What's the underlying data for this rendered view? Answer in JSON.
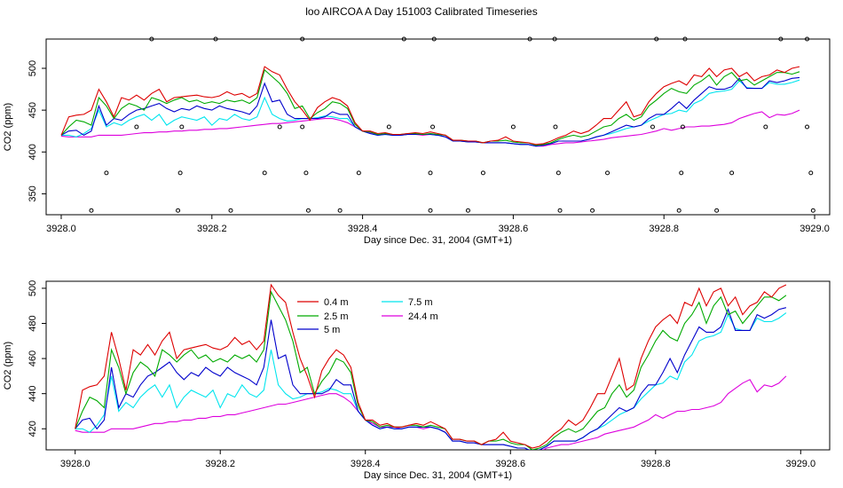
{
  "title": "loo AIRCOA A  Day 151003  Calibrated Timeseries",
  "colors": {
    "0.4 m": "#dd0000",
    "2.5 m": "#00aa00",
    "5 m": "#0000cc",
    "7.5 m": "#00e5ee",
    "24.4 m": "#dd00dd"
  },
  "chart_data": [
    {
      "type": "line",
      "xlabel": "Day since Dec. 31, 2004 (GMT+1)",
      "ylabel": "CO2 (ppm)",
      "xlim": [
        3927.98,
        3929.02
      ],
      "ylim": [
        325,
        535
      ],
      "xticks": [
        3928.0,
        3928.2,
        3928.4,
        3928.6,
        3928.8,
        3929.0
      ],
      "xtick_labels": [
        "3928.0",
        "3928.2",
        "3928.4",
        "3928.6",
        "3928.8",
        "3929.0"
      ],
      "yticks": [
        350,
        400,
        450,
        500
      ],
      "ytick_labels": [
        "350",
        "400",
        "450",
        "500"
      ],
      "legend": null,
      "calibration_points": {
        "x": [
          3928.04,
          3928.06,
          3928.1,
          3928.12,
          3928.155,
          3928.158,
          3928.16,
          3928.205,
          3928.225,
          3928.27,
          3928.29,
          3928.32,
          3928.32,
          3928.325,
          3928.328,
          3928.37,
          3928.395,
          3928.435,
          3928.455,
          3928.49,
          3928.49,
          3928.493,
          3928.495,
          3928.54,
          3928.56,
          3928.6,
          3928.622,
          3928.655,
          3928.656,
          3928.66,
          3928.662,
          3928.705,
          3928.725,
          3928.785,
          3928.79,
          3928.82,
          3928.823,
          3928.825,
          3928.828,
          3928.87,
          3928.89,
          3928.935,
          3928.955,
          3928.99,
          3928.99,
          3928.995,
          3928.998
        ],
        "y": [
          330,
          375,
          430,
          535,
          330,
          375,
          430,
          535,
          330,
          375,
          430,
          535,
          430,
          375,
          330,
          330,
          375,
          430,
          535,
          330,
          375,
          430,
          535,
          330,
          375,
          430,
          535,
          535,
          430,
          375,
          330,
          330,
          375,
          430,
          535,
          330,
          375,
          430,
          535,
          330,
          375,
          430,
          535,
          535,
          430,
          375,
          330
        ]
      },
      "x": [
        3928.0,
        3928.01,
        3928.02,
        3928.03,
        3928.04,
        3928.05,
        3928.06,
        3928.07,
        3928.08,
        3928.09,
        3928.1,
        3928.11,
        3928.12,
        3928.13,
        3928.14,
        3928.15,
        3928.16,
        3928.17,
        3928.18,
        3928.19,
        3928.2,
        3928.21,
        3928.22,
        3928.23,
        3928.24,
        3928.25,
        3928.26,
        3928.27,
        3928.28,
        3928.29,
        3928.3,
        3928.31,
        3928.32,
        3928.33,
        3928.34,
        3928.35,
        3928.36,
        3928.37,
        3928.38,
        3928.39,
        3928.4,
        3928.41,
        3928.42,
        3928.43,
        3928.44,
        3928.45,
        3928.46,
        3928.47,
        3928.48,
        3928.49,
        3928.5,
        3928.51,
        3928.52,
        3928.53,
        3928.54,
        3928.55,
        3928.56,
        3928.57,
        3928.58,
        3928.59,
        3928.6,
        3928.61,
        3928.62,
        3928.63,
        3928.64,
        3928.65,
        3928.66,
        3928.67,
        3928.68,
        3928.69,
        3928.7,
        3928.71,
        3928.72,
        3928.73,
        3928.74,
        3928.75,
        3928.76,
        3928.77,
        3928.78,
        3928.79,
        3928.8,
        3928.81,
        3928.82,
        3928.83,
        3928.84,
        3928.85,
        3928.86,
        3928.87,
        3928.88,
        3928.89,
        3928.9,
        3928.91,
        3928.92,
        3928.93,
        3928.94,
        3928.95,
        3928.96,
        3928.97,
        3928.98
      ],
      "series": [
        {
          "name": "0.4 m",
          "values": [
            420,
            442,
            444,
            445,
            450,
            475,
            460,
            442,
            465,
            462,
            468,
            462,
            470,
            475,
            460,
            465,
            466,
            467,
            468,
            466,
            465,
            467,
            472,
            468,
            470,
            465,
            470,
            502,
            496,
            492,
            475,
            460,
            450,
            438,
            453,
            460,
            465,
            462,
            455,
            435,
            425,
            425,
            422,
            423,
            421,
            421,
            422,
            423,
            422,
            424,
            422,
            420,
            414,
            414,
            413,
            413,
            411,
            413,
            414,
            418,
            413,
            412,
            411,
            409,
            410,
            413,
            417,
            420,
            425,
            422,
            425,
            432,
            440,
            440,
            450,
            460,
            442,
            445,
            460,
            470,
            478,
            482,
            485,
            480,
            492,
            490,
            500,
            490,
            498,
            500,
            490,
            495,
            485,
            490,
            492,
            498,
            495,
            500,
            502
          ]
        },
        {
          "name": "2.5 m",
          "values": [
            420,
            430,
            438,
            436,
            432,
            465,
            455,
            440,
            452,
            458,
            455,
            450,
            465,
            462,
            458,
            462,
            465,
            460,
            462,
            458,
            460,
            458,
            462,
            460,
            462,
            458,
            465,
            498,
            490,
            482,
            470,
            452,
            455,
            440,
            447,
            452,
            460,
            458,
            452,
            433,
            425,
            424,
            421,
            422,
            421,
            421,
            422,
            422,
            421,
            422,
            421,
            420,
            414,
            414,
            413,
            413,
            411,
            413,
            413,
            414,
            412,
            411,
            411,
            408,
            409,
            411,
            415,
            418,
            420,
            418,
            420,
            425,
            430,
            432,
            440,
            445,
            438,
            442,
            455,
            462,
            470,
            476,
            472,
            470,
            480,
            485,
            492,
            480,
            490,
            495,
            485,
            487,
            480,
            485,
            490,
            495,
            495,
            493,
            496
          ]
        },
        {
          "name": "5 m",
          "values": [
            420,
            425,
            426,
            420,
            425,
            455,
            432,
            440,
            438,
            445,
            450,
            452,
            455,
            458,
            452,
            448,
            452,
            450,
            455,
            452,
            450,
            455,
            452,
            450,
            448,
            445,
            455,
            482,
            460,
            462,
            445,
            440,
            440,
            440,
            440,
            442,
            448,
            445,
            445,
            430,
            425,
            422,
            420,
            421,
            420,
            420,
            421,
            421,
            421,
            421,
            420,
            418,
            413,
            413,
            412,
            412,
            411,
            411,
            411,
            411,
            410,
            409,
            409,
            407,
            408,
            410,
            413,
            413,
            413,
            413,
            415,
            418,
            420,
            424,
            428,
            432,
            430,
            432,
            440,
            445,
            445,
            452,
            460,
            452,
            462,
            470,
            478,
            475,
            475,
            478,
            488,
            476,
            476,
            476,
            485,
            483,
            485,
            488,
            489
          ]
        },
        {
          "name": "7.5 m",
          "values": [
            420,
            420,
            418,
            422,
            428,
            450,
            430,
            435,
            432,
            438,
            442,
            445,
            438,
            445,
            432,
            438,
            442,
            440,
            438,
            442,
            432,
            440,
            438,
            445,
            440,
            438,
            442,
            465,
            445,
            440,
            437,
            438,
            440,
            440,
            441,
            443,
            442,
            440,
            440,
            430,
            425,
            422,
            420,
            421,
            420,
            420,
            421,
            421,
            421,
            421,
            420,
            418,
            413,
            413,
            412,
            412,
            411,
            411,
            411,
            411,
            410,
            409,
            409,
            407,
            408,
            410,
            413,
            413,
            413,
            413,
            415,
            418,
            420,
            422,
            425,
            428,
            430,
            432,
            437,
            441,
            445,
            446,
            450,
            448,
            458,
            462,
            470,
            472,
            473,
            475,
            485,
            477,
            476,
            476,
            483,
            481,
            481,
            483,
            486
          ]
        },
        {
          "name": "24.4 m",
          "values": [
            419,
            418,
            418,
            418,
            418,
            420,
            420,
            420,
            420,
            421,
            422,
            423,
            423,
            424,
            424,
            425,
            425,
            426,
            426,
            427,
            427,
            428,
            428,
            429,
            430,
            431,
            432,
            433,
            434,
            434,
            435,
            436,
            437,
            438,
            439,
            440,
            440,
            438,
            435,
            430,
            425,
            423,
            421,
            421,
            421,
            420,
            421,
            421,
            420,
            421,
            420,
            418,
            413,
            413,
            412,
            412,
            411,
            411,
            411,
            411,
            410,
            409,
            409,
            407,
            407,
            409,
            410,
            411,
            411,
            412,
            413,
            414,
            415,
            417,
            418,
            419,
            420,
            421,
            423,
            425,
            428,
            426,
            428,
            430,
            430,
            431,
            431,
            432,
            433,
            435,
            440,
            443,
            446,
            448,
            441,
            445,
            444,
            446,
            450
          ]
        }
      ]
    },
    {
      "type": "line",
      "xlabel": "Day since Dec. 31, 2004 (GMT+1)",
      "ylabel": "CO2 (ppm)",
      "xlim": [
        3927.96,
        3929.04
      ],
      "ylim": [
        408,
        504
      ],
      "xticks": [
        3928.0,
        3928.2,
        3928.4,
        3928.6,
        3928.8,
        3929.0
      ],
      "xtick_labels": [
        "3928.0",
        "3928.2",
        "3928.4",
        "3928.6",
        "3928.8",
        "3929.0"
      ],
      "yticks": [
        420,
        440,
        460,
        480,
        500
      ],
      "ytick_labels": [
        "420",
        "440",
        "460",
        "480",
        "500"
      ],
      "legend": {
        "placement": "top-left",
        "entries": [
          "0.4 m",
          "2.5 m",
          "5 m",
          "7.5 m",
          "24.4 m"
        ]
      },
      "series_ref": "same series as chart 1"
    }
  ]
}
